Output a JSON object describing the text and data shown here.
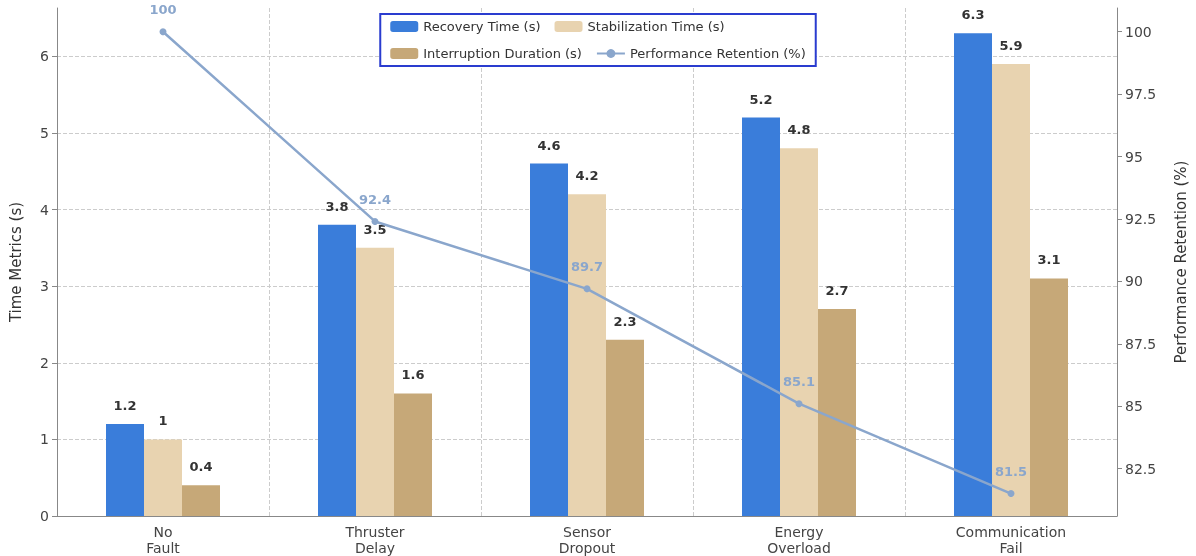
{
  "chart_data": {
    "type": "bar",
    "categories": [
      "No Fault",
      "Thruster Delay",
      "Sensor Dropout",
      "Energy Overload",
      "Communication Fail"
    ],
    "ylabel": "Time Metrics (s)",
    "y2label": "Performance Retention (%)",
    "series": [
      {
        "name": "Recovery Time (s)",
        "color": "#3a7dda",
        "values": [
          1.2,
          3.8,
          4.6,
          5.2,
          6.3
        ]
      },
      {
        "name": "Stabilization Time (s)",
        "color": "#e8d3b0",
        "values": [
          1,
          3.5,
          4.2,
          4.8,
          5.9
        ]
      },
      {
        "name": "Interruption Duration (s)",
        "color": "#c6a878",
        "values": [
          0.4,
          1.6,
          2.3,
          2.7,
          3.1
        ]
      },
      {
        "name": "Performance Retention (%)",
        "type": "line",
        "axis": "y2",
        "color": "#8aa6cc",
        "values": [
          100,
          92.4,
          89.7,
          85.1,
          81.5
        ]
      }
    ],
    "ylim": [
      0,
      6.63
    ],
    "yticks": [
      0,
      1,
      2,
      3,
      4,
      5,
      6
    ],
    "y2lim": [
      80.6,
      100.95
    ],
    "y2ticks": [
      82.5,
      85,
      87.5,
      90,
      92.5,
      95,
      97.5,
      100
    ],
    "data_labels": true,
    "grid": true,
    "legend": "top",
    "marker": "circle",
    "line_style": "solid"
  }
}
